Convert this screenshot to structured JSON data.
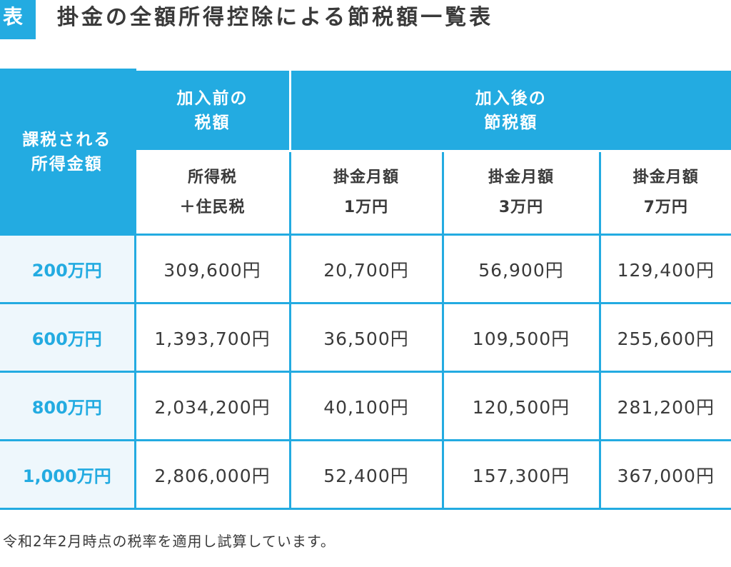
{
  "header": {
    "tag": "表",
    "title": "掛金の全額所得控除による節税額一覧表"
  },
  "table": {
    "corner_header": [
      "課税される",
      "所得金額"
    ],
    "before_header": [
      "加入前の",
      "税額"
    ],
    "after_header": [
      "加入後の",
      "節税額"
    ],
    "sub_headers": [
      [
        "所得税",
        "＋住民税"
      ],
      [
        "掛金月額",
        "1万円"
      ],
      [
        "掛金月額",
        "3万円"
      ],
      [
        "掛金月額",
        "7万円"
      ]
    ],
    "rows": [
      {
        "income": "200万円",
        "values": [
          "309,600円",
          "20,700円",
          "56,900円",
          "129,400円"
        ]
      },
      {
        "income": "600万円",
        "values": [
          "1,393,700円",
          "36,500円",
          "109,500円",
          "255,600円"
        ]
      },
      {
        "income": "800万円",
        "values": [
          "2,034,200円",
          "40,100円",
          "120,500円",
          "281,200円"
        ]
      },
      {
        "income": "1,000万円",
        "values": [
          "2,806,000円",
          "52,400円",
          "157,300円",
          "367,000円"
        ]
      }
    ]
  },
  "footnote": "令和2年2月時点の税率を適用し試算しています。",
  "colors": {
    "accent": "#23abe1",
    "row_label_bg": "#eef7fc",
    "text": "#3a3a3a"
  }
}
